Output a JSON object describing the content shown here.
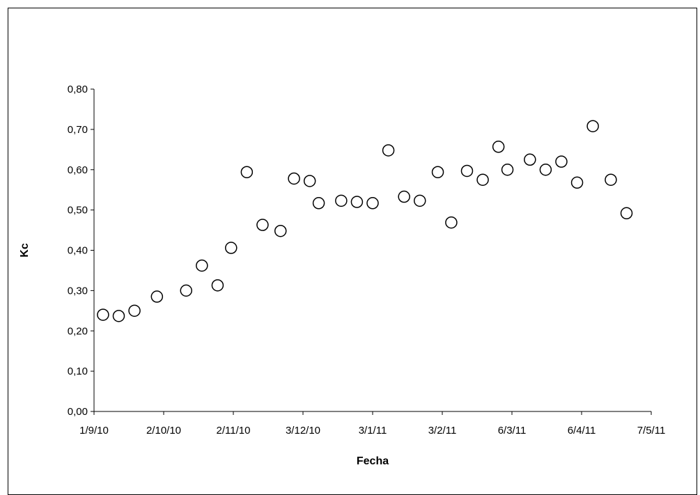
{
  "chart_data": {
    "type": "scatter",
    "title": "",
    "xlabel": "Fecha",
    "ylabel": "Kc",
    "x_ticks": [
      "1/9/10",
      "2/10/10",
      "2/11/10",
      "3/12/10",
      "3/1/11",
      "3/2/11",
      "6/3/11",
      "6/4/11",
      "7/5/11"
    ],
    "x_tick_dates": [
      "2010-09-01",
      "2010-10-02",
      "2010-11-02",
      "2010-12-03",
      "2011-01-03",
      "2011-02-03",
      "2011-03-06",
      "2011-04-06",
      "2011-05-07"
    ],
    "y_ticks": [
      "0,00",
      "0,10",
      "0,20",
      "0,30",
      "0,40",
      "0,50",
      "0,60",
      "0,70",
      "0,80"
    ],
    "ylim": [
      0,
      0.8
    ],
    "xlim": [
      "2010-09-01",
      "2011-05-07"
    ],
    "grid": false,
    "legend": "none",
    "marker": "open-circle",
    "series": [
      {
        "points": [
          {
            "x": "2010-09-05",
            "y": 0.24
          },
          {
            "x": "2010-09-12",
            "y": 0.237
          },
          {
            "x": "2010-09-19",
            "y": 0.25
          },
          {
            "x": "2010-09-29",
            "y": 0.285
          },
          {
            "x": "2010-10-12",
            "y": 0.3
          },
          {
            "x": "2010-10-19",
            "y": 0.362
          },
          {
            "x": "2010-10-26",
            "y": 0.313
          },
          {
            "x": "2010-11-01",
            "y": 0.406
          },
          {
            "x": "2010-11-08",
            "y": 0.594
          },
          {
            "x": "2010-11-15",
            "y": 0.463
          },
          {
            "x": "2010-11-23",
            "y": 0.448
          },
          {
            "x": "2010-11-29",
            "y": 0.578
          },
          {
            "x": "2010-12-06",
            "y": 0.572
          },
          {
            "x": "2010-12-10",
            "y": 0.517
          },
          {
            "x": "2010-12-20",
            "y": 0.523
          },
          {
            "x": "2010-12-27",
            "y": 0.52
          },
          {
            "x": "2011-01-03",
            "y": 0.517
          },
          {
            "x": "2011-01-10",
            "y": 0.648
          },
          {
            "x": "2011-01-17",
            "y": 0.533
          },
          {
            "x": "2011-01-24",
            "y": 0.523
          },
          {
            "x": "2011-02-01",
            "y": 0.594
          },
          {
            "x": "2011-02-07",
            "y": 0.469
          },
          {
            "x": "2011-02-14",
            "y": 0.597
          },
          {
            "x": "2011-02-21",
            "y": 0.575
          },
          {
            "x": "2011-02-28",
            "y": 0.657
          },
          {
            "x": "2011-03-04",
            "y": 0.6
          },
          {
            "x": "2011-03-14",
            "y": 0.625
          },
          {
            "x": "2011-03-21",
            "y": 0.6
          },
          {
            "x": "2011-03-28",
            "y": 0.62
          },
          {
            "x": "2011-04-04",
            "y": 0.568
          },
          {
            "x": "2011-04-11",
            "y": 0.708
          },
          {
            "x": "2011-04-19",
            "y": 0.575
          },
          {
            "x": "2011-04-26",
            "y": 0.492
          }
        ]
      }
    ]
  }
}
